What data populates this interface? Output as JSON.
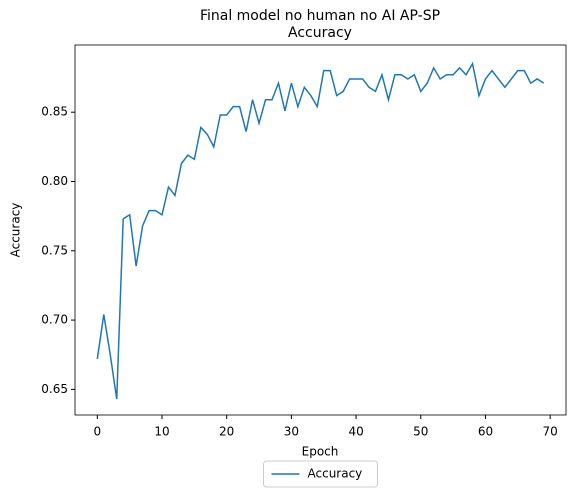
{
  "chart_data": {
    "type": "line",
    "title": [
      "Final model no human no AI AP-SP",
      "Accuracy"
    ],
    "xlabel": "Epoch",
    "ylabel": "Accuracy",
    "x": [
      0,
      1,
      2,
      3,
      4,
      5,
      6,
      7,
      8,
      9,
      10,
      11,
      12,
      13,
      14,
      15,
      16,
      17,
      18,
      19,
      20,
      21,
      22,
      23,
      24,
      25,
      26,
      27,
      28,
      29,
      30,
      31,
      32,
      33,
      34,
      35,
      36,
      37,
      38,
      39,
      40,
      41,
      42,
      43,
      44,
      45,
      46,
      47,
      48,
      49,
      50,
      51,
      52,
      53,
      54,
      55,
      56,
      57,
      58,
      59,
      60,
      61,
      62,
      63,
      64,
      65,
      66,
      67,
      68,
      69
    ],
    "series": [
      {
        "name": "Accuracy",
        "color": "#1f77b4",
        "values": [
          0.672,
          0.704,
          0.675,
          0.643,
          0.773,
          0.776,
          0.739,
          0.768,
          0.779,
          0.779,
          0.776,
          0.796,
          0.79,
          0.813,
          0.819,
          0.816,
          0.839,
          0.834,
          0.825,
          0.848,
          0.848,
          0.854,
          0.854,
          0.836,
          0.859,
          0.842,
          0.859,
          0.859,
          0.871,
          0.851,
          0.871,
          0.854,
          0.868,
          0.862,
          0.854,
          0.88,
          0.88,
          0.862,
          0.865,
          0.874,
          0.874,
          0.874,
          0.868,
          0.865,
          0.877,
          0.859,
          0.877,
          0.877,
          0.874,
          0.877,
          0.865,
          0.871,
          0.882,
          0.874,
          0.877,
          0.877,
          0.882,
          0.877,
          0.885,
          0.862,
          0.874,
          0.88,
          0.874,
          0.868,
          0.874,
          0.88,
          0.88,
          0.871,
          0.874,
          0.871
        ]
      }
    ],
    "xlim": [
      -3.45,
      72.45
    ],
    "xticks": [
      0,
      10,
      20,
      30,
      40,
      50,
      60,
      70
    ],
    "ylim": [
      0.6315,
      0.8985
    ],
    "yticks": [
      {
        "value": 0.65,
        "label": "0.65"
      },
      {
        "value": 0.7,
        "label": "0.70"
      },
      {
        "value": 0.75,
        "label": "0.75"
      },
      {
        "value": 0.8,
        "label": "0.80"
      },
      {
        "value": 0.85,
        "label": "0.85"
      }
    ],
    "legend": "lower center outside"
  }
}
